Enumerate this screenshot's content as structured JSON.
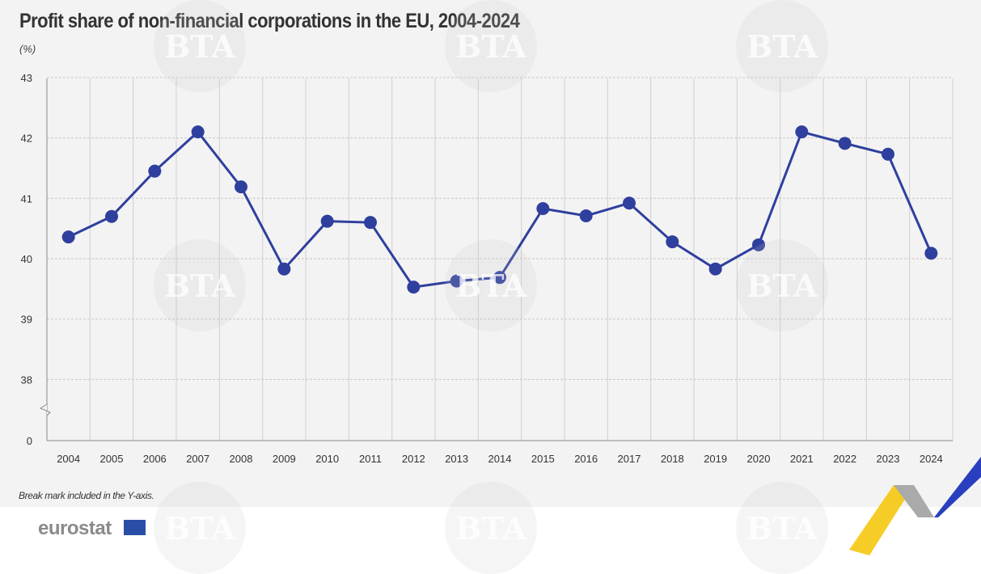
{
  "chart_data": {
    "type": "line",
    "title": "Profit share of non-financial corporations in the EU, 2004-2024",
    "ylabel": "(%)",
    "xlabel": "",
    "categories": [
      "2004",
      "2005",
      "2006",
      "2007",
      "2008",
      "2009",
      "2010",
      "2011",
      "2012",
      "2013",
      "2014",
      "2015",
      "2016",
      "2017",
      "2018",
      "2019",
      "2020",
      "2021",
      "2022",
      "2023",
      "2024"
    ],
    "series": [
      {
        "name": "Profit share",
        "color": "#2f3f9e",
        "values": [
          40.36,
          40.7,
          41.45,
          42.1,
          41.19,
          39.83,
          40.62,
          40.6,
          39.53,
          39.63,
          39.69,
          40.83,
          40.71,
          40.92,
          40.28,
          39.83,
          40.23,
          42.1,
          41.91,
          41.73,
          40.09
        ]
      }
    ],
    "yticks": [
      "0",
      "38",
      "39",
      "40",
      "41",
      "42",
      "43"
    ],
    "ylim": [
      38,
      43
    ],
    "y_break": true,
    "grid": true,
    "note": "Break mark included in the Y-axis."
  },
  "footer": {
    "logo": "eurostat"
  },
  "watermark": "BTA"
}
